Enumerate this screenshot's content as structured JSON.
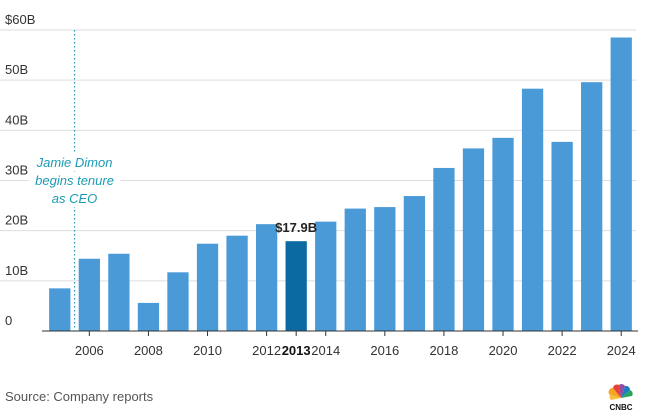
{
  "chart_data": {
    "type": "bar",
    "categories": [
      "2005",
      "2006",
      "2007",
      "2008",
      "2009",
      "2010",
      "2011",
      "2012",
      "2013",
      "2014",
      "2015",
      "2016",
      "2017",
      "2018",
      "2019",
      "2020",
      "2021",
      "2022",
      "2023",
      "2024"
    ],
    "values": [
      8.5,
      14.4,
      15.4,
      5.6,
      11.7,
      17.4,
      19.0,
      21.3,
      17.9,
      21.8,
      24.4,
      24.7,
      26.9,
      32.5,
      36.4,
      38.5,
      48.3,
      37.7,
      49.6,
      58.5
    ],
    "highlight": "2013",
    "highlight_label": "$17.9B",
    "xtick_labels": [
      "2006",
      "2008",
      "2010",
      "2012",
      "2013",
      "2014",
      "2016",
      "2018",
      "2020",
      "2022",
      "2024"
    ],
    "yticks": [
      {
        "value": 0,
        "label": "0"
      },
      {
        "value": 10,
        "label": "10B"
      },
      {
        "value": 20,
        "label": "20B"
      },
      {
        "value": 30,
        "label": "30B"
      },
      {
        "value": 40,
        "label": "40B"
      },
      {
        "value": 50,
        "label": "50B"
      },
      {
        "value": 60,
        "label": "$60B"
      }
    ],
    "ylim": [
      0,
      60
    ],
    "grid": true,
    "colors": {
      "bar": "#4a9ad8",
      "highlight": "#0a6aa1",
      "annotation": "#1a9bb5"
    },
    "annotation": {
      "lines": [
        "Jamie Dimon",
        "begins tenure",
        "as CEO"
      ],
      "x_year": 2005.5
    }
  },
  "source": "Source: Company reports",
  "logo_text": "CNBC"
}
